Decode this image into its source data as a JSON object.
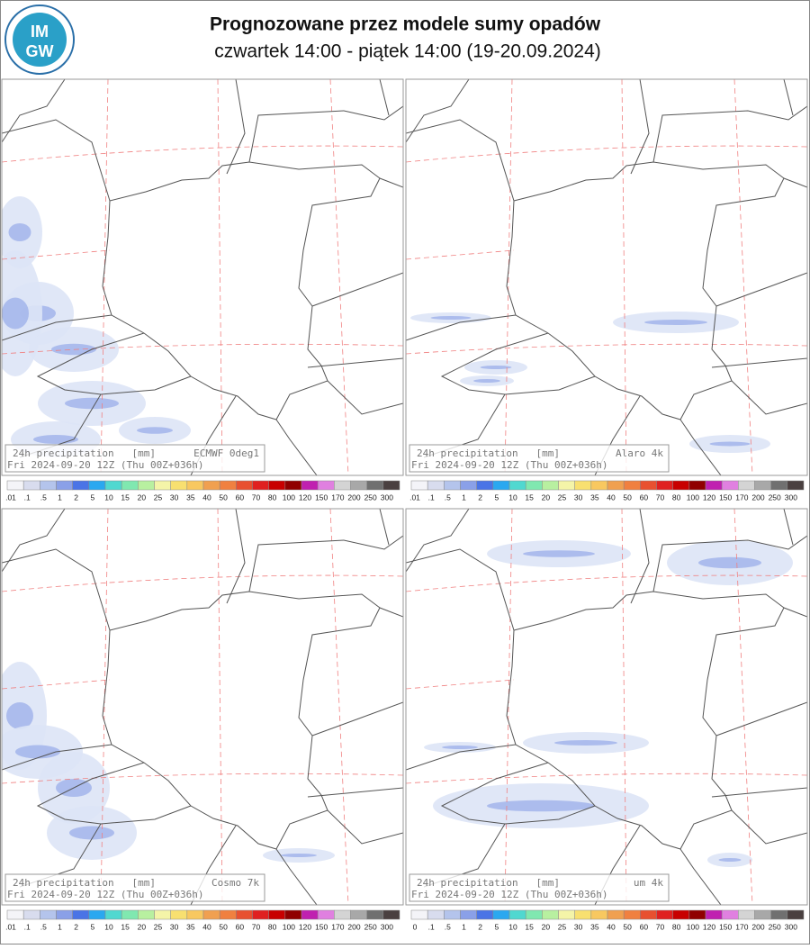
{
  "header": {
    "title": "Prognozowane przez modele sumy opadów",
    "subtitle": "czwartek 14:00 - piątek 14:00 (19-20.09.2024)",
    "logo": [
      "IM",
      "GW"
    ]
  },
  "colorbar": {
    "colors": [
      "#f4f4f8",
      "#d8dcee",
      "#b4c4ec",
      "#8aa0e8",
      "#4a74e6",
      "#2aa8f0",
      "#50d8d0",
      "#80e8b0",
      "#b8f0a0",
      "#f4f4a8",
      "#f8e070",
      "#f8c860",
      "#f0a050",
      "#f08040",
      "#e85030",
      "#e02020",
      "#c80000",
      "#900000",
      "#c020b0",
      "#e080e0",
      "#d4d4d4",
      "#a8a8a8",
      "#707070",
      "#4a4040"
    ]
  },
  "panels": [
    {
      "label": "24h precipitation   [mm]",
      "model": "ECMWF 0deg1",
      "run": "Fri 2024-09-20 12Z (Thu 00Z+036h)",
      "scale": [
        ".01",
        ".1",
        ".5",
        "1",
        "2",
        "5",
        "10",
        "15",
        "20",
        "25",
        "30",
        "35",
        "40",
        "50",
        "60",
        "70",
        "80",
        "100",
        "120",
        "150",
        "170",
        "200",
        "250",
        "300"
      ]
    },
    {
      "label": "24h precipitation   [mm]",
      "model": "Alaro 4k",
      "run": "Fri 2024-09-20 12Z (Thu 00Z+036h)",
      "scale": [
        ".01",
        ".1",
        ".5",
        "1",
        "2",
        "5",
        "10",
        "15",
        "20",
        "25",
        "30",
        "35",
        "40",
        "50",
        "60",
        "70",
        "80",
        "100",
        "120",
        "150",
        "170",
        "200",
        "250",
        "300"
      ]
    },
    {
      "label": "24h precipitation   [mm]",
      "model": "Cosmo 7k",
      "run": "Fri 2024-09-20 12Z (Thu 00Z+036h)",
      "scale": [
        ".01",
        ".1",
        ".5",
        "1",
        "2",
        "5",
        "10",
        "15",
        "20",
        "25",
        "30",
        "35",
        "40",
        "50",
        "60",
        "70",
        "80",
        "100",
        "120",
        "150",
        "170",
        "200",
        "250",
        "300"
      ]
    },
    {
      "label": "24h precipitation   [mm]",
      "model": "um 4k",
      "run": "Fri 2024-09-20 12Z (Thu 00Z+036h)",
      "scale": [
        "0",
        ".1",
        ".5",
        "1",
        "2",
        "5",
        "10",
        "15",
        "20",
        "25",
        "30",
        "35",
        "40",
        "50",
        "60",
        "70",
        "80",
        "100",
        "120",
        "150",
        "170",
        "200",
        "250",
        "300"
      ]
    }
  ]
}
